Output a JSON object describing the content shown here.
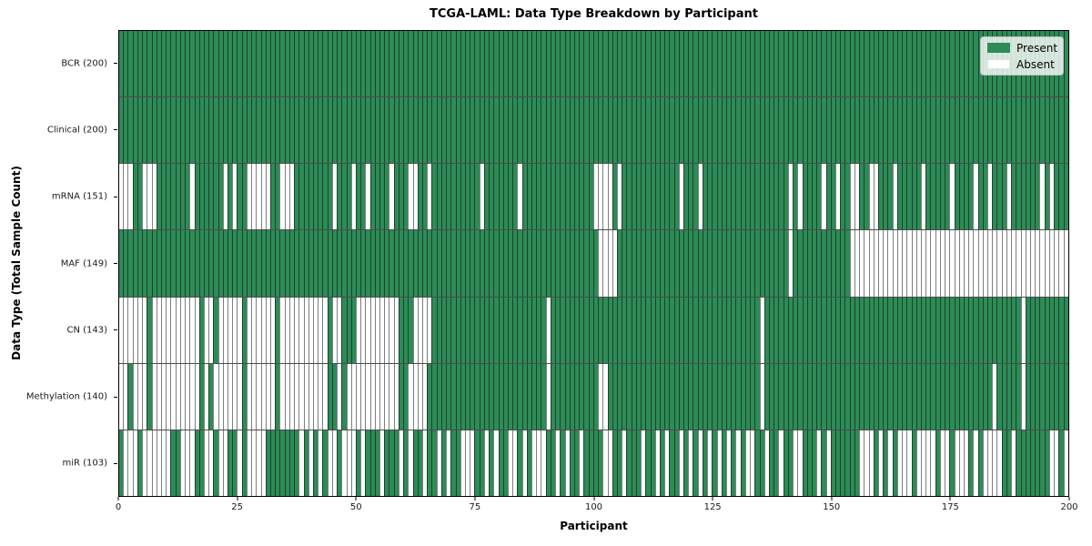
{
  "chart_data": {
    "type": "heatmap",
    "title": "TCGA-LAML: Data Type Breakdown by Participant",
    "xlabel": "Participant",
    "ylabel": "Data Type (Total Sample Count)",
    "x_ticks": [
      0,
      25,
      50,
      75,
      100,
      125,
      150,
      175,
      200
    ],
    "x_range": [
      0,
      200
    ],
    "n_participants": 200,
    "grid": false,
    "legend": {
      "position": "upper right",
      "items": [
        {
          "label": "Present",
          "color": "#2e8b57"
        },
        {
          "label": "Absent",
          "color": "#ffffff"
        }
      ]
    },
    "colors": {
      "present": "#2e8b57",
      "absent": "#ffffff",
      "cell_border": "rgba(0,0,0,0.5)",
      "plot_border": "#000000"
    },
    "rows": [
      {
        "label": "BCR (200)",
        "name": "BCR",
        "count": 200,
        "pattern": [
          "1111111111",
          "1111111111",
          "1111111111",
          "1111111111",
          "1111111111",
          "1111111111",
          "1111111111",
          "1111111111",
          "1111111111",
          "1111111111",
          "1111111111",
          "1111111111",
          "1111111111",
          "1111111111",
          "1111111111",
          "1111111111",
          "1111111111",
          "1111111111",
          "1111111111",
          "1111111111"
        ]
      },
      {
        "label": "Clinical (200)",
        "name": "Clinical",
        "count": 200,
        "pattern": [
          "1111111111",
          "1111111111",
          "1111111111",
          "1111111111",
          "1111111111",
          "1111111111",
          "1111111111",
          "1111111111",
          "1111111111",
          "1111111111",
          "1111111111",
          "1111111111",
          "1111111111",
          "1111111111",
          "1111111111",
          "1111111111",
          "1111111111",
          "1111111111",
          "1111111111",
          "1111111111"
        ]
      },
      {
        "label": "mRNA (151)",
        "name": "mRNA",
        "count": 151,
        "pattern": [
          "0001100011",
          "1111101111",
          "1101011000",
          "0011000111",
          "1111101110",
          "1101111011",
          "1001101111",
          "1111110111",
          "1111011111",
          "1111111111",
          "0000101111",
          "1111111101",
          "1101111111",
          "1111111111",
          "1010111101",
          "1011001100",
          "1110111110",
          "1111101111",
          "0110111011",
          "1111010111"
        ]
      },
      {
        "label": "MAF (149)",
        "name": "MAF",
        "count": 149,
        "pattern": [
          "1111111111",
          "1111111111",
          "1111111111",
          "1111111111",
          "1111111111",
          "1111111111",
          "1111111111",
          "1111111111",
          "1111111111",
          "1111111111",
          "1000011111",
          "1111111111",
          "1111111111",
          "1111111111",
          "1011111111",
          "1111000000",
          "0000000000",
          "0000000000",
          "0000000000",
          "0000000000"
        ]
      },
      {
        "label": "CN (143)",
        "name": "CN",
        "count": 143,
        "pattern": [
          "0000001000",
          "0000000100",
          "1000001000",
          "0001000000",
          "0000100111",
          "0000000001",
          "1100001111",
          "1111111111",
          "1111111111",
          "0111111111",
          "1111111111",
          "1111111111",
          "1111111111",
          "1111101111",
          "1111111111",
          "1111111111",
          "1111111111",
          "1111111111",
          "1111111111",
          "0111111111"
        ]
      },
      {
        "label": "Methylation (140)",
        "name": "Methylation",
        "count": 140,
        "pattern": [
          "0010001000",
          "0000000101",
          "0000001000",
          "0001000000",
          "0000110100",
          "0000000001",
          "1000011111",
          "1111111111",
          "1111111111",
          "0111111111",
          "1001111111",
          "1111111111",
          "1111111111",
          "1111101111",
          "1111111111",
          "1111111111",
          "1111111111",
          "1111111111",
          "1111011111",
          "0111111111"
        ]
      },
      {
        "label": "miR (103)",
        "name": "miR",
        "count": 103,
        "pattern": [
          "1000100000",
          "0110001100",
          "1001101000",
          "0111111101",
          "0101001000",
          "1011101110",
          "1011011010",
          "1100011010",
          "1100101000",
          "1101011011",
          "1100110111",
          "0110101101",
          "0101010101",
          "0100110110",
          "1100111010",
          "1111110001",
          "0101000100",
          "0010010001",
          "0100001101",
          "1111110010"
        ]
      }
    ]
  }
}
